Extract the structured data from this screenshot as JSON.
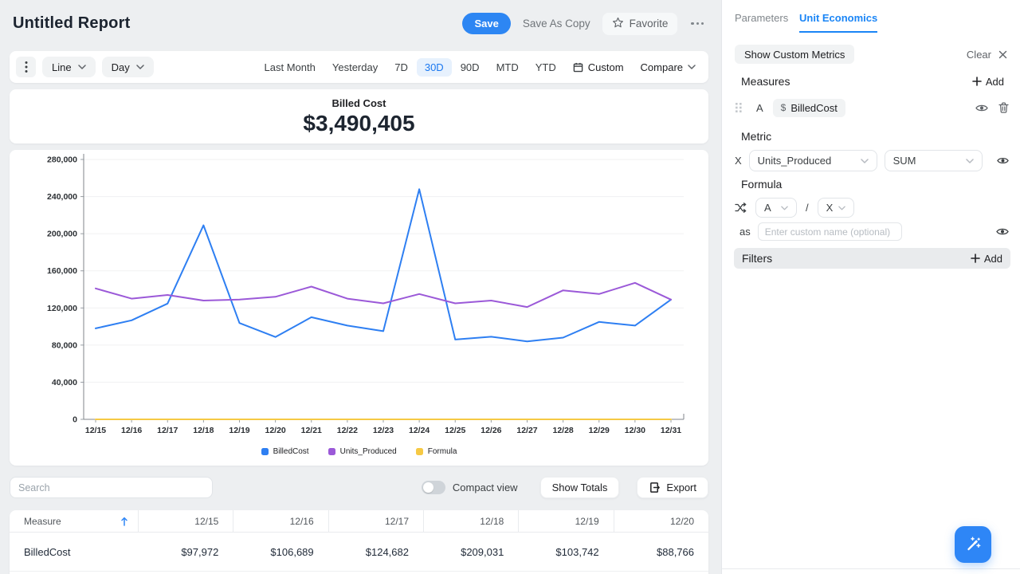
{
  "header": {
    "title": "Untitled Report",
    "save_label": "Save",
    "save_as_copy_label": "Save As Copy",
    "favorite_label": "Favorite"
  },
  "toolbar": {
    "chart_type": "Line",
    "granularity": "Day",
    "ranges": [
      "Last Month",
      "Yesterday",
      "7D",
      "30D",
      "90D",
      "MTD",
      "YTD"
    ],
    "active_range": "30D",
    "custom_label": "Custom",
    "compare_label": "Compare"
  },
  "metric_card": {
    "label": "Billed Cost",
    "value": "$3,490,405"
  },
  "chart_data": {
    "type": "line",
    "x": [
      "12/15",
      "12/16",
      "12/17",
      "12/18",
      "12/19",
      "12/20",
      "12/21",
      "12/22",
      "12/23",
      "12/24",
      "12/25",
      "12/26",
      "12/27",
      "12/28",
      "12/29",
      "12/30",
      "12/31"
    ],
    "series": [
      {
        "name": "BilledCost",
        "color": "#2e7ff2",
        "values": [
          97972,
          106689,
          124682,
          209031,
          103742,
          88766,
          110000,
          101000,
          95000,
          248000,
          86000,
          89000,
          84000,
          88000,
          105000,
          101000,
          129000
        ]
      },
      {
        "name": "Units_Produced",
        "color": "#9b59d8",
        "values": [
          141000,
          130000,
          134000,
          128000,
          129000,
          132000,
          143000,
          130000,
          125000,
          135000,
          125000,
          128000,
          121000,
          139000,
          135000,
          147000,
          129000
        ]
      },
      {
        "name": "Formula",
        "color": "#f6c944",
        "values": [
          0.69,
          0.82,
          0.93,
          1.63,
          0.8,
          0.67,
          0.77,
          0.78,
          0.76,
          1.84,
          0.69,
          0.7,
          0.69,
          0.63,
          0.78,
          0.69,
          1.0
        ]
      }
    ],
    "ylim": [
      0,
      280000
    ],
    "ytick_step": 40000,
    "grid": true,
    "legend_position": "bottom"
  },
  "table_toolbar": {
    "search_placeholder": "Search",
    "compact_view_label": "Compact view",
    "show_totals_label": "Show Totals",
    "export_label": "Export"
  },
  "table": {
    "measure_header": "Measure",
    "columns": [
      "12/15",
      "12/16",
      "12/17",
      "12/18",
      "12/19",
      "12/20"
    ],
    "rows": [
      {
        "measure": "BilledCost",
        "values": [
          "$97,972",
          "$106,689",
          "$124,682",
          "$209,031",
          "$103,742",
          "$88,766"
        ]
      }
    ]
  },
  "panel": {
    "tabs": [
      "Parameters",
      "Unit Economics"
    ],
    "active_tab": "Unit Economics",
    "show_custom_metrics_label": "Show Custom Metrics",
    "clear_label": "Clear",
    "measures": {
      "title": "Measures",
      "add_label": "Add",
      "rows": [
        {
          "letter": "A",
          "currency": "$",
          "name": "BilledCost"
        }
      ]
    },
    "metric": {
      "title": "Metric",
      "letter": "X",
      "field": "Units_Produced",
      "aggregation": "SUM"
    },
    "formula": {
      "title": "Formula",
      "operand_a": "A",
      "operator": "/",
      "operand_b": "X",
      "as_label": "as",
      "name_placeholder": "Enter custom name (optional)"
    },
    "filters": {
      "title": "Filters",
      "add_label": "Add"
    }
  },
  "colors": {
    "accent_blue": "#2d86f3",
    "active_range_bg": "#e7f1fd",
    "chart_blue": "#2e7ff2",
    "chart_purple": "#9b59d8",
    "chart_yellow": "#f6c944",
    "page_bg": "#edeff1"
  },
  "icons": [
    "kebab-menu",
    "chevron-down",
    "calendar",
    "star",
    "ellipsis",
    "sort-asc",
    "export",
    "plus",
    "close",
    "drag-handle",
    "dollar",
    "eye",
    "trash",
    "shuffle",
    "magic-wand"
  ]
}
